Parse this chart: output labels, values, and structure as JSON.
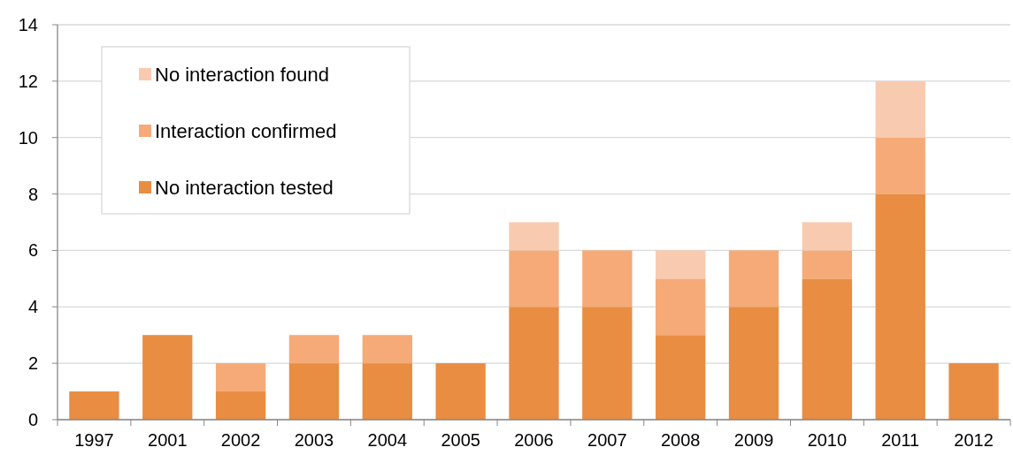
{
  "chart_data": {
    "type": "bar",
    "stacked": true,
    "categories": [
      "1997",
      "2001",
      "2002",
      "2003",
      "2004",
      "2005",
      "2006",
      "2007",
      "2008",
      "2009",
      "2010",
      "2011",
      "2012"
    ],
    "series": [
      {
        "name": "No interaction tested",
        "color": "#e88d42",
        "values": [
          1,
          3,
          1,
          2,
          2,
          2,
          4,
          4,
          3,
          4,
          5,
          8,
          2
        ]
      },
      {
        "name": "Interaction confirmed",
        "color": "#f5aa78",
        "values": [
          0,
          0,
          1,
          1,
          1,
          0,
          2,
          2,
          2,
          2,
          1,
          2,
          0
        ]
      },
      {
        "name": "No interaction found",
        "color": "#f8cbb1",
        "values": [
          0,
          0,
          0,
          0,
          0,
          0,
          1,
          0,
          1,
          0,
          1,
          2,
          0
        ]
      }
    ],
    "ylim": [
      0,
      14
    ],
    "yticks": [
      0,
      2,
      4,
      6,
      8,
      10,
      12,
      14
    ],
    "grid": "y",
    "legend": "top left"
  }
}
